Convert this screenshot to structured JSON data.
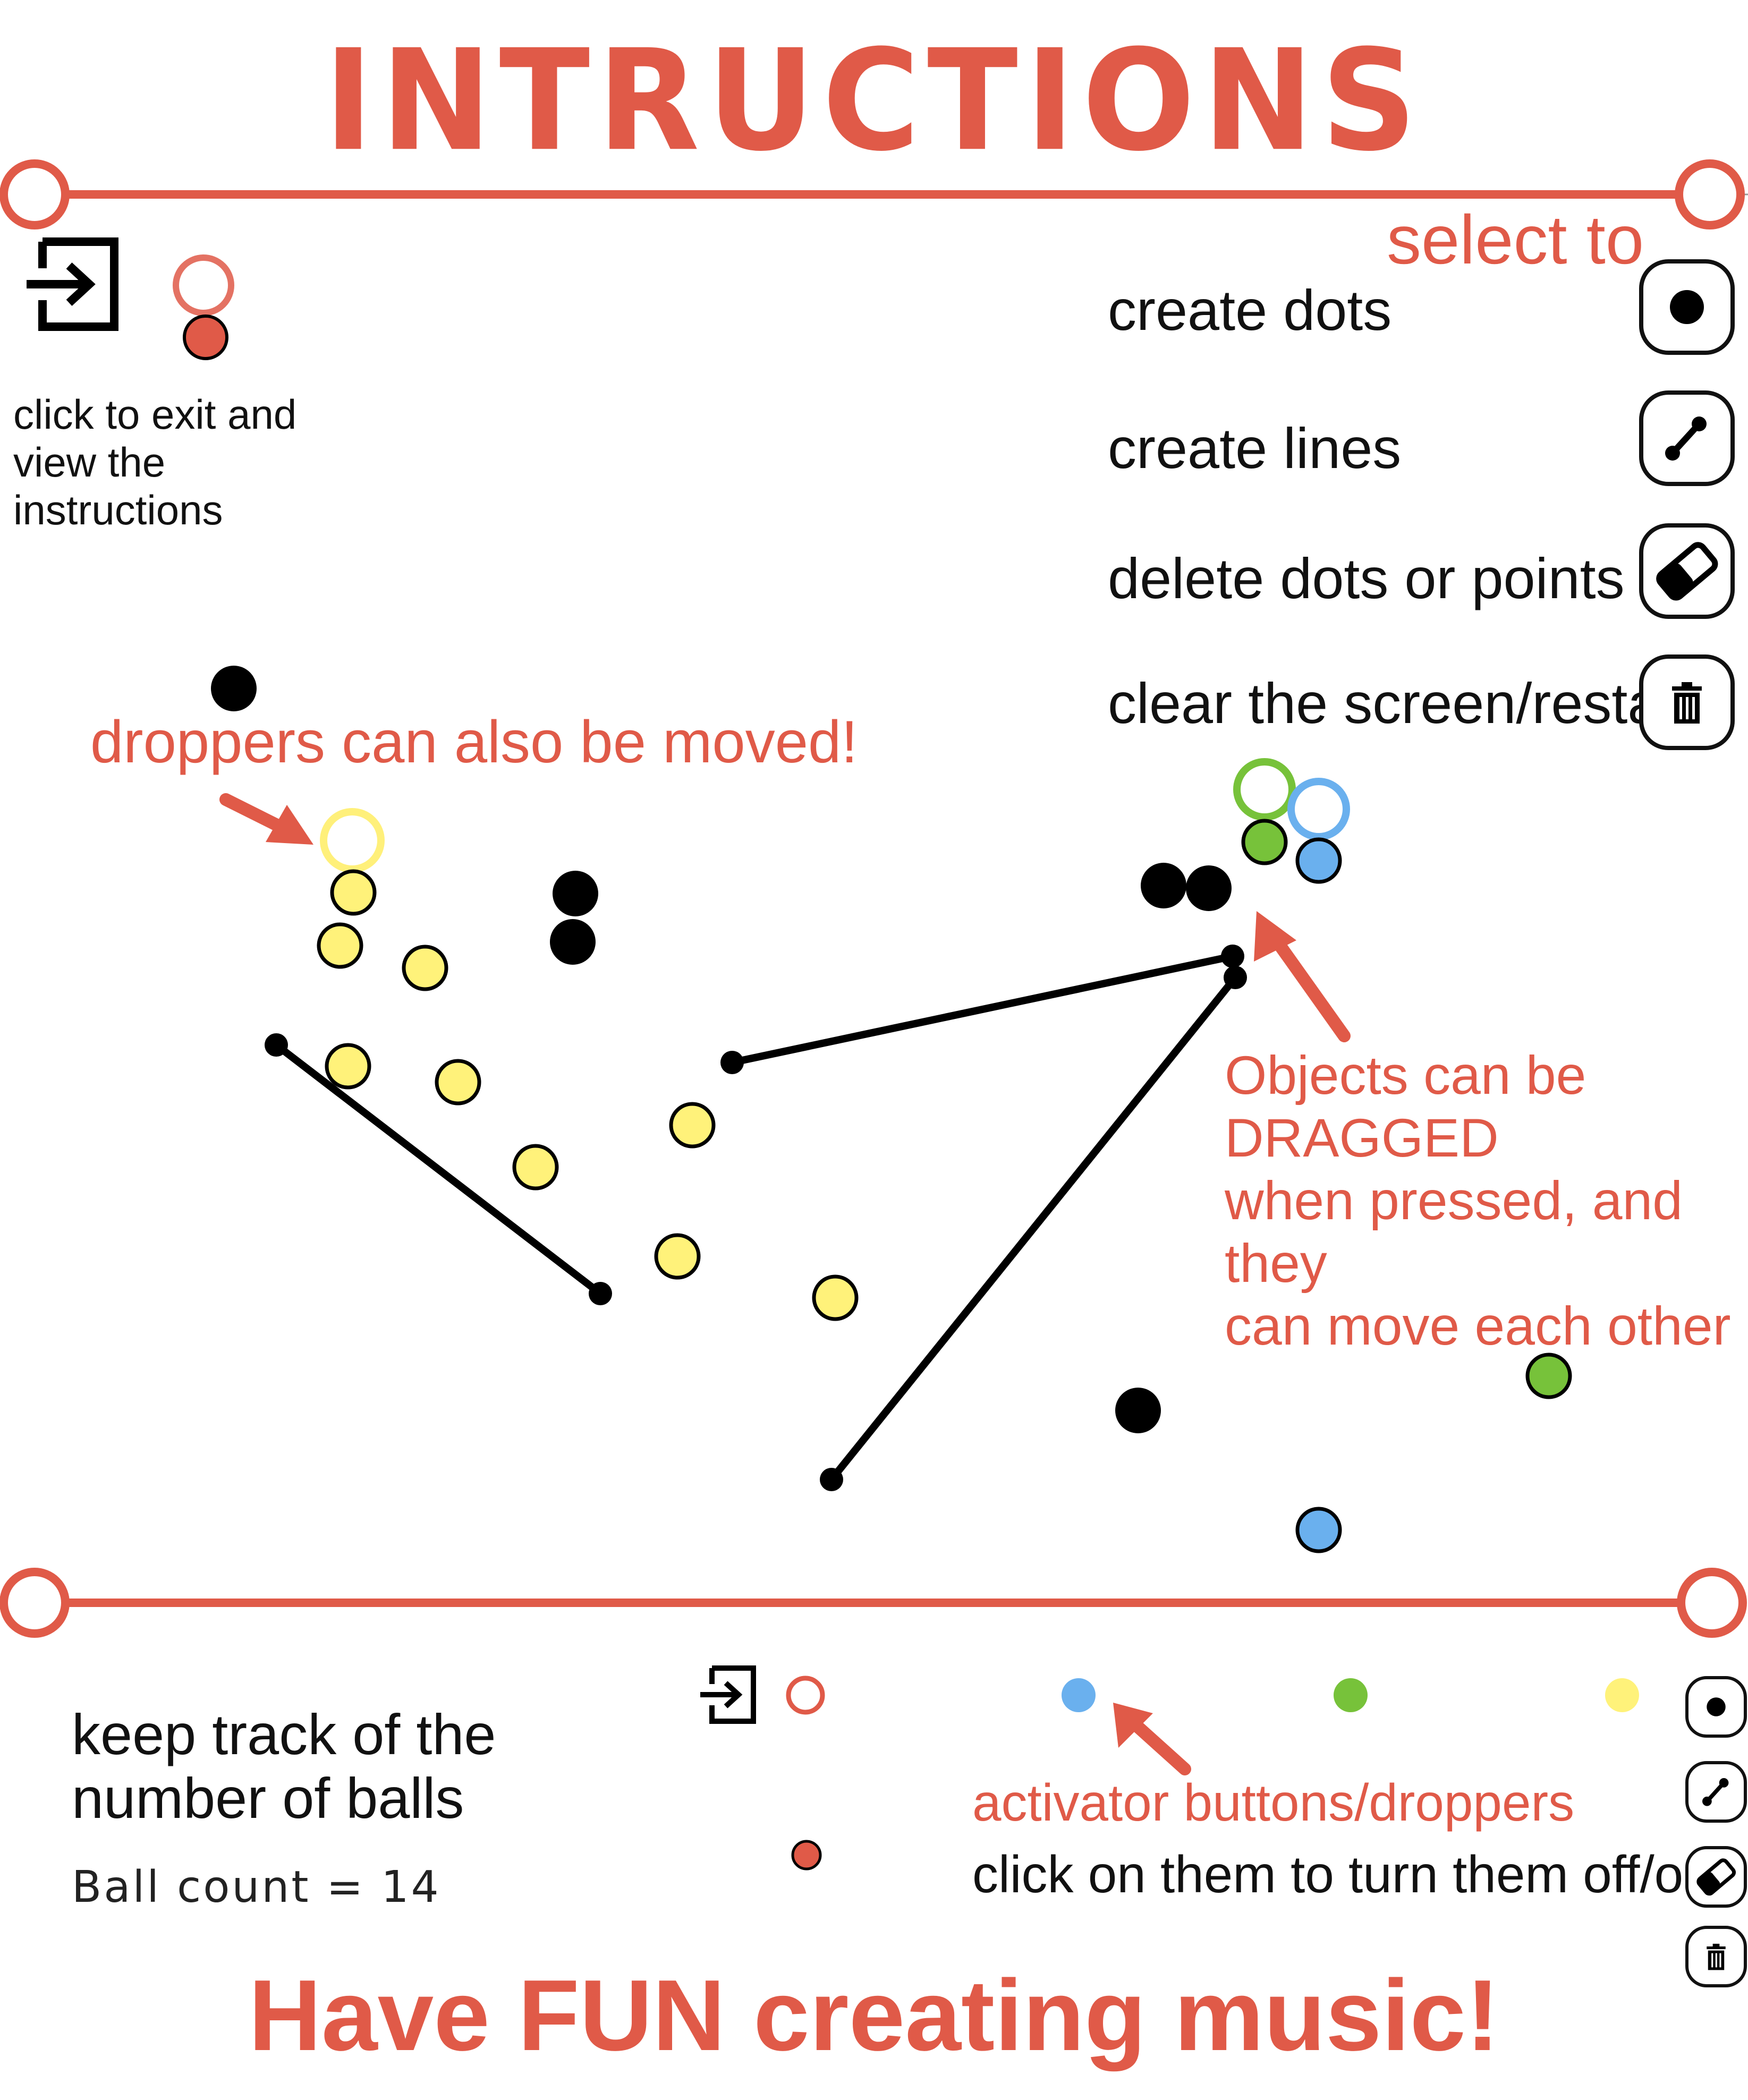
{
  "title": "INTRUCTIONS",
  "exit_caption": "click to exit and\nview the\ninstructions",
  "select_to": "select to",
  "tools": [
    {
      "label": "create dots",
      "icon": "dot-icon"
    },
    {
      "label": "create lines",
      "icon": "line-icon"
    },
    {
      "label": "delete dots or points",
      "icon": "eraser-icon"
    },
    {
      "label": "clear the screen/restart",
      "icon": "trash-icon"
    }
  ],
  "annotations": {
    "droppers_moved": "droppers can also be moved!",
    "dragged": "Objects can be DRAGGED\nwhen pressed, and they\ncan move each other",
    "keep_track": "keep track of the\nnumber of balls",
    "activator_title": "activator buttons/droppers",
    "activator_desc": "click on them to turn them off/on",
    "footer": "Have FUN creating music!"
  },
  "ball_count": {
    "label": "Ball count",
    "value": "14",
    "text": "Ball count = 14"
  },
  "colors": {
    "accent": "#e05a48",
    "yellow": "#fff27a",
    "yellow_ring": "#fff07a",
    "green": "#77c23a",
    "blue": "#6ab0ee",
    "red_dot": "#e05a48",
    "black": "#000000"
  }
}
